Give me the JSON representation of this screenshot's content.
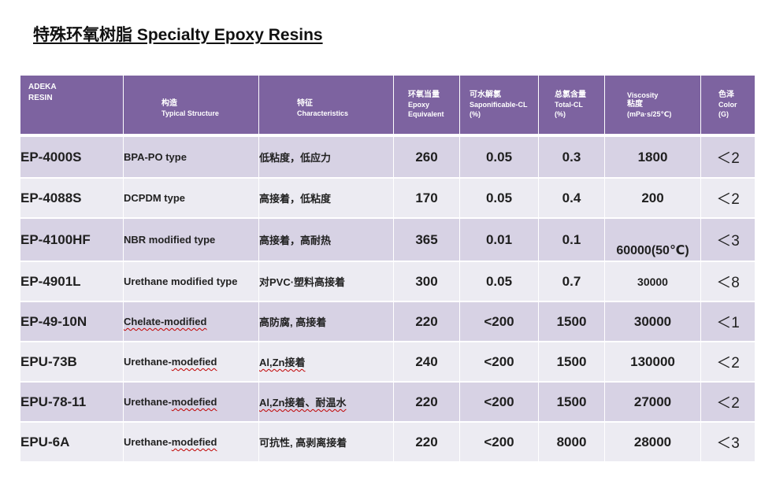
{
  "title": "特殊环氧树脂  Specialty Epoxy Resins",
  "header": {
    "resin": [
      "ADEKA",
      "RESIN"
    ],
    "structure": [
      "构造",
      "Typical Structure"
    ],
    "characteristics": [
      "特征",
      "Characteristics"
    ],
    "epoxy": [
      "环氧当量",
      "Epoxy",
      "Equivalent"
    ],
    "saponifiable": [
      "可水解氯",
      "Saponificable-CL",
      "(%)"
    ],
    "total_cl": [
      "总氯含量",
      "Total-CL",
      "(%)"
    ],
    "viscosity": [
      "Viscosity",
      "粘度",
      "(mPa·s/25℃)"
    ],
    "color": [
      "色泽",
      "Color",
      "(G)"
    ]
  },
  "rows": [
    {
      "code": "EP-4000S",
      "structure": "BPA-PO type",
      "characteristics": "低粘度，低应力",
      "epoxy": "260",
      "saponifiable": "0.05",
      "total_cl": "0.3",
      "viscosity": "1800",
      "color": "＜2"
    },
    {
      "code": "EP-4088S",
      "structure": "DCPDM type",
      "characteristics": "高接着，低粘度",
      "epoxy": "170",
      "saponifiable": "0.05",
      "total_cl": "0.4",
      "viscosity": "200",
      "color": "＜2"
    },
    {
      "code": "EP-4100HF",
      "structure": "NBR modified type",
      "characteristics": "高接着，高耐热",
      "epoxy": "365",
      "saponifiable": "0.01",
      "total_cl": "0.1",
      "viscosity": "60000(50℃)",
      "color": "＜3"
    },
    {
      "code": "EP-4901L",
      "structure": "Urethane modified type",
      "characteristics": "对PVC·塑料高接着",
      "epoxy": "300",
      "saponifiable": "0.05",
      "total_cl": "0.7",
      "viscosity": "30000",
      "color": "＜8"
    },
    {
      "code": "EP-49-10N",
      "structure": "Chelate-modified",
      "characteristics": "高防腐, 高接着",
      "epoxy": "220",
      "saponifiable": "<200",
      "total_cl": "1500",
      "viscosity": "30000",
      "color": "＜1"
    },
    {
      "code": "EPU-73B",
      "structure": "Urethane-modefied",
      "characteristics": "Al,Zn接着",
      "epoxy": "240",
      "saponifiable": "<200",
      "total_cl": "1500",
      "viscosity": "130000",
      "color": "＜2"
    },
    {
      "code": "EPU-78-11",
      "structure": "Urethane-modefied",
      "characteristics": "Al,Zn接着、耐温水",
      "epoxy": "220",
      "saponifiable": "<200",
      "total_cl": "1500",
      "viscosity": "27000",
      "color": "＜2"
    },
    {
      "code": "EPU-6A",
      "structure": "Urethane-modefied",
      "characteristics": "可抗性, 高剥离接着",
      "epoxy": "220",
      "saponifiable": "<200",
      "total_cl": "8000",
      "viscosity": "28000",
      "color": "＜3"
    }
  ],
  "colors": {
    "header_bg": "#7d63a0",
    "row_odd": "#d7d2e4",
    "row_even": "#ecebf2",
    "spellcheck": "#c00000"
  }
}
